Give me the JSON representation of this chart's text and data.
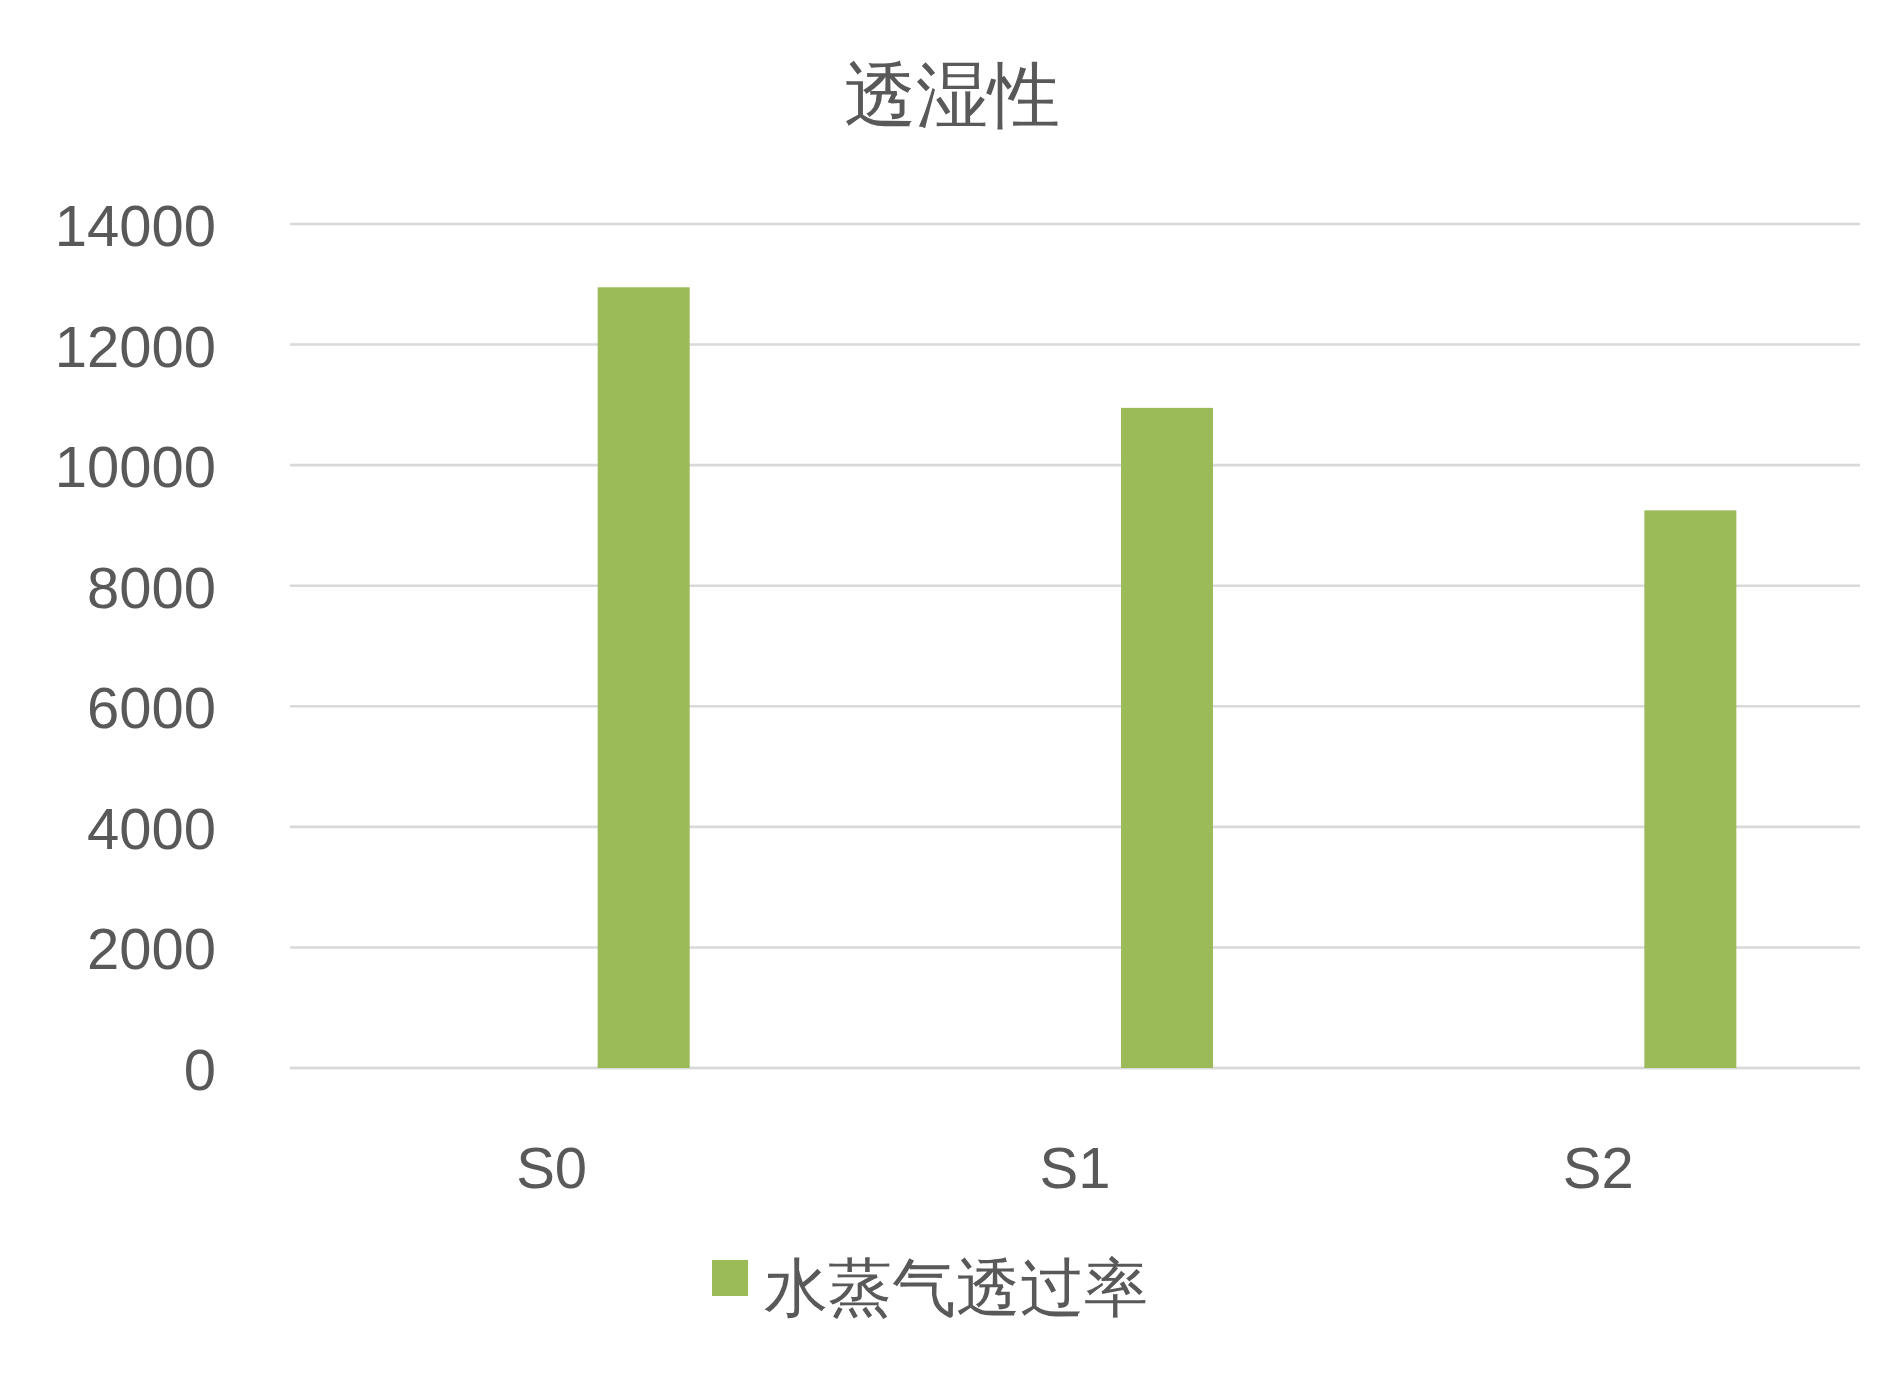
{
  "chart_data": {
    "type": "bar",
    "title": "透湿性",
    "categories": [
      "S0",
      "S1",
      "S2"
    ],
    "series": [
      {
        "name": "水蒸气透过率",
        "color": "#9bbb59",
        "values": [
          12950,
          10950,
          9250
        ]
      }
    ],
    "ylim": [
      0,
      14000
    ],
    "yticks": [
      0,
      2000,
      4000,
      6000,
      8000,
      10000,
      12000,
      14000
    ],
    "grid": "y",
    "legend": "bottom"
  }
}
